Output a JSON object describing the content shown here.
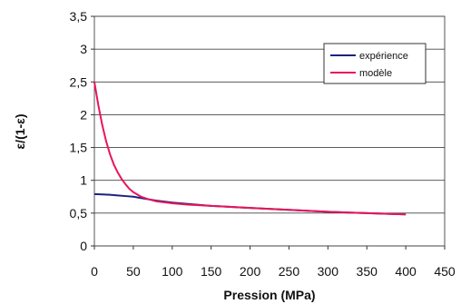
{
  "chart_data": {
    "type": "line",
    "xlabel": "Pression (MPa)",
    "ylabel": "ε/(1-ε)",
    "xlim": [
      0,
      450
    ],
    "ylim": [
      0,
      3.5
    ],
    "x_ticks": [
      "0",
      "50",
      "100",
      "150",
      "200",
      "250",
      "300",
      "350",
      "400",
      "450"
    ],
    "y_ticks": [
      "0",
      "0,5",
      "1",
      "1,5",
      "2",
      "2,5",
      "3",
      "3,5"
    ],
    "grid": "horizontal",
    "legend_position": "top-right",
    "series": [
      {
        "name": "expérience",
        "color": "#1a237e",
        "x": [
          0,
          10,
          20,
          30,
          40,
          50,
          60,
          70,
          80,
          100,
          120,
          150,
          200,
          250,
          300,
          350,
          400
        ],
        "y": [
          0.79,
          0.785,
          0.78,
          0.77,
          0.76,
          0.75,
          0.73,
          0.71,
          0.69,
          0.66,
          0.64,
          0.61,
          0.58,
          0.55,
          0.52,
          0.5,
          0.48
        ]
      },
      {
        "name": "modèle",
        "color": "#e8155b",
        "x": [
          0,
          5,
          10,
          15,
          20,
          25,
          30,
          35,
          40,
          45,
          50,
          60,
          70,
          80,
          100,
          120,
          150,
          200,
          250,
          300,
          350,
          400
        ],
        "y": [
          2.5,
          2.15,
          1.85,
          1.6,
          1.4,
          1.24,
          1.12,
          1.02,
          0.94,
          0.87,
          0.82,
          0.75,
          0.71,
          0.68,
          0.65,
          0.63,
          0.61,
          0.58,
          0.55,
          0.52,
          0.5,
          0.48
        ]
      }
    ]
  }
}
